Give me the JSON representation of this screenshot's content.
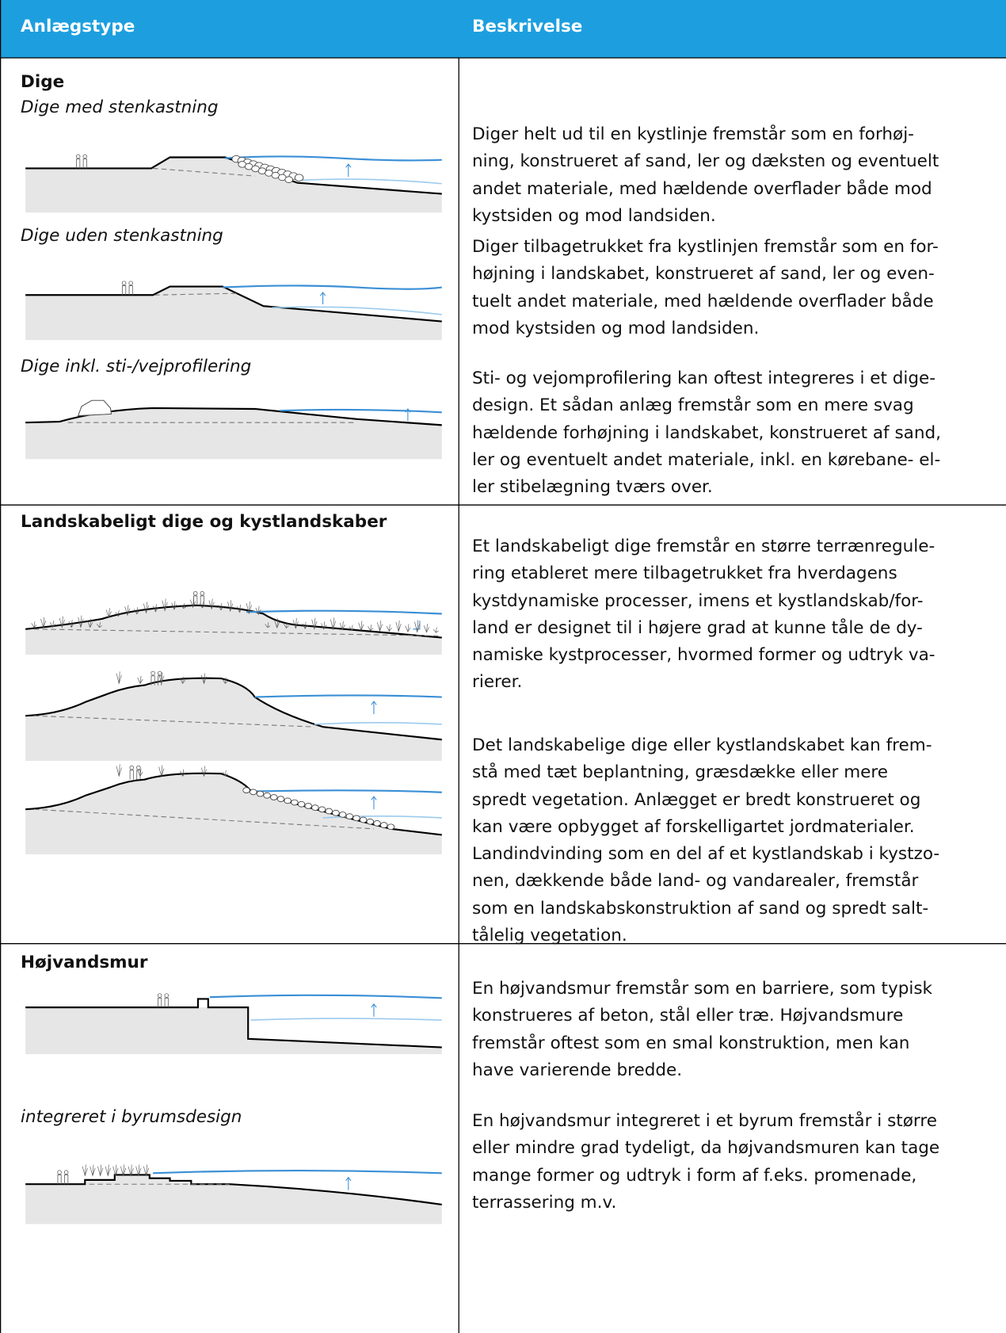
{
  "header": {
    "columns": [
      "Anlægstype",
      "Beskrivelse"
    ]
  },
  "rows": [
    {
      "title": "Dige",
      "items": [
        {
          "subtitle": "Dige med stenkastning",
          "description": [
            "Diger helt ud til en kystlinje fremstår som en forhøj-",
            "ning, konstrueret af sand, ler og dæksten og eventuelt",
            "andet materiale, med hældende overflader både mod",
            "kystsiden og mod landsiden."
          ]
        },
        {
          "subtitle": "Dige uden stenkastning",
          "description": [
            "Diger tilbagetrukket fra kystlinjen fremstår som en for-",
            "højning i landskabet, konstrueret af sand, ler og even-",
            "tuelt andet materiale, med hældende overflader både",
            "mod kystsiden og mod landsiden."
          ]
        },
        {
          "subtitle": "Dige inkl. sti-/vejprofilering",
          "description": [
            "Sti- og vejomprofilering kan oftest integreres i et dige-",
            "design. Et sådan anlæg fremstår som en mere svag",
            "hældende forhøjning i landskabet, konstrueret af sand,",
            "ler og eventuelt andet materiale, inkl. en kørebane- el-",
            "ler stibelægning tværs over."
          ]
        }
      ]
    },
    {
      "title": "Landskabeligt dige og kystlandskaber",
      "items": [
        {
          "description": [
            "Et landskabeligt dige fremstår en større terrænregule-",
            "ring etableret mere tilbagetrukket fra hverdagens",
            "kystdynamiske processer, imens et kystlandskab/for-",
            "land er designet til i højere grad at kunne tåle de dy-",
            "namiske kystprocesser, hvormed former og udtryk va-",
            "rierer."
          ]
        },
        {
          "description": [
            "Det landskabelige dige eller kystlandskabet kan frem-",
            "stå med tæt beplantning, græsdække eller mere",
            "spredt vegetation. Anlægget er bredt konstrueret og",
            "kan være opbygget af forskelligartet jordmaterialer.",
            "Landindvinding som en del af et kystlandskab i kystzo-",
            "nen, dækkende både land- og vandarealer, fremstår",
            "som en landskabskonstruktion af sand og spredt salt-",
            "tålelig vegetation."
          ]
        }
      ]
    },
    {
      "title": "Højvandsmur",
      "items": [
        {
          "description": [
            "En højvandsmur fremstår som en barriere, som typisk",
            "konstrueres af beton, stål eller træ. Højvandsmure",
            "fremstår oftest som en smal konstruktion, men kan",
            "have varierende bredde."
          ]
        },
        {
          "subtitle": "integreret i byrumsdesign",
          "description": [
            "En højvandsmur integreret i et byrum fremstår i større",
            "eller mindre grad tydeligt, da højvandsmuren kan tage",
            "mange former og udtryk i form af f.eks. promenade,",
            "terrassering m.v."
          ]
        }
      ]
    }
  ]
}
